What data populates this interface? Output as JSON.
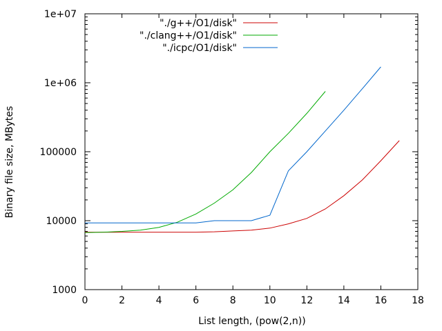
{
  "chart_data": {
    "type": "line",
    "title": "",
    "xlabel": "List length, (pow(2,n))",
    "ylabel": "Binary file size, MBytes",
    "xlim": [
      0,
      18
    ],
    "ylim": [
      1000,
      10000000
    ],
    "yscale": "log",
    "grid": false,
    "legend_position": "top-center",
    "x_ticks": [
      0,
      2,
      4,
      6,
      8,
      10,
      12,
      14,
      16,
      18
    ],
    "x_tick_labels": [
      "0",
      "2",
      "4",
      "6",
      "8",
      "10",
      "12",
      "14",
      "16",
      "18"
    ],
    "y_ticks": [
      1000,
      10000,
      100000,
      1000000,
      10000000
    ],
    "y_tick_labels": [
      "1000",
      "10000",
      "100000",
      "1e+06",
      "1e+07"
    ],
    "series": [
      {
        "name": "\"./g++/O1/disk\"",
        "color": "#cc0000",
        "x": [
          0,
          1,
          2,
          3,
          4,
          5,
          6,
          7,
          8,
          9,
          10,
          11,
          12,
          13,
          14,
          15,
          16,
          17
        ],
        "y": [
          6800,
          6800,
          6800,
          6800,
          6800,
          6800,
          6800,
          6900,
          7100,
          7300,
          7800,
          9000,
          10800,
          14800,
          23000,
          39000,
          74000,
          145000
        ]
      },
      {
        "name": "\"./clang++/O1/disk\"",
        "color": "#00aa00",
        "x": [
          0,
          1,
          2,
          3,
          4,
          5,
          6,
          7,
          8,
          9,
          10,
          11,
          12,
          13
        ],
        "y": [
          6700,
          6800,
          7000,
          7300,
          8000,
          9500,
          12500,
          18000,
          28000,
          50000,
          100000,
          185000,
          360000,
          750000
        ]
      },
      {
        "name": "\"./icpc/O1/disk\"",
        "color": "#0066cc",
        "x": [
          0,
          1,
          2,
          3,
          4,
          5,
          6,
          7,
          8,
          9,
          10,
          11,
          12,
          13,
          14,
          15,
          16
        ],
        "y": [
          9300,
          9300,
          9300,
          9300,
          9300,
          9300,
          9300,
          10000,
          10000,
          10000,
          12000,
          53000,
          100000,
          200000,
          400000,
          820000,
          1700000
        ]
      }
    ]
  }
}
